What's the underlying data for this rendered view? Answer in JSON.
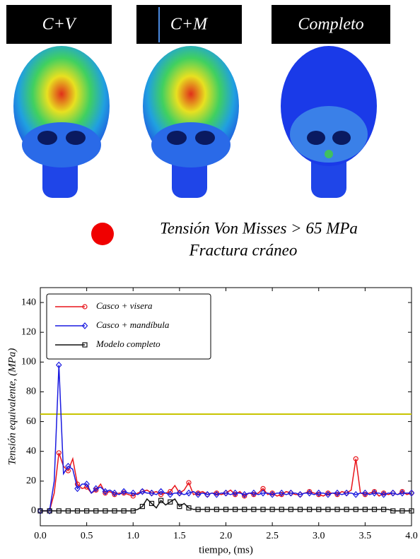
{
  "panels": [
    "C+V",
    "C+M",
    "Completo"
  ],
  "legend_note": {
    "line1": "Tensión Von Misses > 65 MPa",
    "line2": "Fractura cráneo"
  },
  "chart_data": {
    "type": "line",
    "xlabel": "tiempo, (ms)",
    "ylabel": "Tensión equivalente, (MPa)",
    "xlim": [
      0,
      4
    ],
    "ylim": [
      -10,
      150
    ],
    "xticks": [
      {
        "value": 0,
        "label": "0.0"
      },
      {
        "value": 0.5,
        "label": "0.5"
      },
      {
        "value": 1,
        "label": "1.0"
      },
      {
        "value": 1.5,
        "label": "1.5"
      },
      {
        "value": 2,
        "label": "2.0"
      },
      {
        "value": 2.5,
        "label": "2.5"
      },
      {
        "value": 3,
        "label": "3.0"
      },
      {
        "value": 3.5,
        "label": "3.5"
      },
      {
        "value": 4,
        "label": "4.0"
      }
    ],
    "yticks": [
      0,
      20,
      40,
      60,
      80,
      100,
      120,
      140
    ],
    "threshold": {
      "value": 65,
      "color": "#c8c400"
    },
    "legend": "upper left",
    "x": [
      0,
      0.05,
      0.1,
      0.15,
      0.2,
      0.25,
      0.3,
      0.35,
      0.4,
      0.45,
      0.5,
      0.55,
      0.6,
      0.65,
      0.7,
      0.75,
      0.8,
      0.85,
      0.9,
      0.95,
      1,
      1.05,
      1.1,
      1.15,
      1.2,
      1.25,
      1.3,
      1.35,
      1.4,
      1.45,
      1.5,
      1.55,
      1.6,
      1.65,
      1.7,
      1.75,
      1.8,
      1.85,
      1.9,
      1.95,
      2,
      2.05,
      2.1,
      2.15,
      2.2,
      2.25,
      2.3,
      2.35,
      2.4,
      2.45,
      2.5,
      2.55,
      2.6,
      2.65,
      2.7,
      2.75,
      2.8,
      2.85,
      2.9,
      2.95,
      3,
      3.05,
      3.1,
      3.15,
      3.2,
      3.25,
      3.3,
      3.35,
      3.4,
      3.45,
      3.5,
      3.55,
      3.6,
      3.65,
      3.7,
      3.75,
      3.8,
      3.85,
      3.9,
      3.95,
      4
    ],
    "series": [
      {
        "name": "Casco + visera",
        "color": "#e8141a",
        "marker": "circle",
        "values": [
          0,
          0,
          0,
          12,
          39,
          30,
          27,
          35,
          18,
          15,
          16,
          12,
          14,
          18,
          12,
          13,
          11,
          12,
          12,
          11,
          10,
          12,
          13,
          14,
          12,
          13,
          11,
          12,
          13,
          17,
          12,
          14,
          19,
          11,
          12,
          13,
          11,
          12,
          12,
          11,
          12,
          14,
          11,
          13,
          10,
          12,
          11,
          12,
          15,
          11,
          12,
          10,
          11,
          13,
          12,
          11,
          11,
          12,
          13,
          12,
          11,
          10,
          12,
          12,
          11,
          13,
          12,
          14,
          35,
          12,
          11,
          12,
          13,
          10,
          12,
          11,
          12,
          11,
          13,
          11,
          12
        ]
      },
      {
        "name": "Casco + mandíbula",
        "color": "#1a1ae0",
        "marker": "diamond",
        "values": [
          0,
          0,
          0,
          20,
          98,
          25,
          30,
          28,
          15,
          18,
          18,
          12,
          15,
          16,
          13,
          14,
          12,
          11,
          13,
          12,
          12,
          11,
          13,
          12,
          12,
          11,
          13,
          12,
          11,
          12,
          12,
          11,
          12,
          13,
          11,
          12,
          11,
          12,
          11,
          12,
          12,
          11,
          12,
          12,
          11,
          12,
          12,
          11,
          12,
          12,
          11,
          12,
          12,
          11,
          12,
          12,
          11,
          12,
          12,
          11,
          12,
          12,
          11,
          12,
          12,
          11,
          12,
          12,
          11,
          12,
          12,
          11,
          12,
          12,
          11,
          12,
          12,
          11,
          12,
          12,
          12
        ]
      },
      {
        "name": "Modelo completo",
        "color": "#111111",
        "marker": "square",
        "values": [
          0,
          0,
          0,
          0,
          0,
          0,
          0,
          0,
          0,
          0,
          0,
          0,
          0,
          0,
          0,
          0,
          0,
          0,
          0,
          0,
          0,
          1,
          3,
          8,
          5,
          2,
          7,
          4,
          6,
          8,
          3,
          5,
          2,
          1,
          1,
          1,
          1,
          1,
          1,
          1,
          1,
          1,
          1,
          1,
          1,
          1,
          1,
          1,
          1,
          1,
          1,
          1,
          1,
          1,
          1,
          1,
          1,
          1,
          1,
          1,
          1,
          1,
          1,
          1,
          1,
          1,
          1,
          1,
          1,
          1,
          1,
          1,
          1,
          1,
          1,
          1,
          0,
          0,
          0,
          0,
          0
        ]
      }
    ]
  }
}
